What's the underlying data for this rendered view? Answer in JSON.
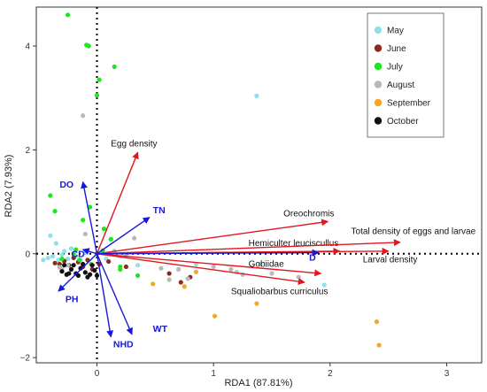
{
  "chart_data": {
    "type": "scatter",
    "title": "",
    "xlabel": "RDA1 (87.81%)",
    "ylabel": "RDA2 (7.93%)",
    "xlim": [
      -0.52,
      3.3
    ],
    "ylim": [
      -2.1,
      4.75
    ],
    "xticks": [
      0,
      1,
      2,
      3
    ],
    "yticks": [
      -2,
      0,
      2,
      4
    ],
    "grid": false,
    "legend_position": "top-right",
    "series": [
      {
        "name": "May",
        "color": "#8ee0ea",
        "points": [
          [
            -0.46,
            -0.12
          ],
          [
            -0.42,
            -0.08
          ],
          [
            -0.4,
            0.35
          ],
          [
            -0.38,
            -0.05
          ],
          [
            -0.35,
            0.2
          ],
          [
            -0.33,
            -0.12
          ],
          [
            -0.3,
            -0.02
          ],
          [
            -0.28,
            0.05
          ],
          [
            -0.25,
            -0.1
          ],
          [
            -0.22,
            0.1
          ],
          [
            -0.18,
            -0.05
          ],
          [
            -0.14,
            -0.12
          ],
          [
            -0.1,
            0.02
          ],
          [
            0.08,
            -0.1
          ],
          [
            0.35,
            -0.22
          ],
          [
            0.85,
            -0.2
          ],
          [
            1.2,
            -0.35
          ],
          [
            1.4,
            -0.2
          ],
          [
            1.95,
            -0.6
          ],
          [
            1.37,
            3.04
          ]
        ]
      },
      {
        "name": "June",
        "color": "#8b2a1e",
        "points": [
          [
            -0.36,
            -0.18
          ],
          [
            -0.32,
            -0.2
          ],
          [
            -0.28,
            -0.14
          ],
          [
            -0.24,
            -0.22
          ],
          [
            -0.2,
            -0.08
          ],
          [
            -0.16,
            -0.16
          ],
          [
            -0.12,
            -0.25
          ],
          [
            -0.08,
            -0.12
          ],
          [
            -0.04,
            -0.3
          ],
          [
            0.02,
            -0.2
          ],
          [
            0.1,
            -0.15
          ],
          [
            0.25,
            -0.25
          ],
          [
            0.62,
            -0.38
          ],
          [
            0.72,
            -0.55
          ],
          [
            0.8,
            -0.45
          ]
        ]
      },
      {
        "name": "July",
        "color": "#1ee61e",
        "points": [
          [
            -0.25,
            4.6
          ],
          [
            -0.09,
            4.02
          ],
          [
            -0.07,
            4.0
          ],
          [
            0.15,
            3.6
          ],
          [
            0.02,
            3.35
          ],
          [
            0.0,
            3.05
          ],
          [
            -0.4,
            1.12
          ],
          [
            -0.36,
            0.82
          ],
          [
            -0.12,
            0.65
          ],
          [
            -0.06,
            0.9
          ],
          [
            0.06,
            0.48
          ],
          [
            -0.3,
            -0.1
          ],
          [
            -0.18,
            0.08
          ],
          [
            0.0,
            0.0
          ],
          [
            0.12,
            0.28
          ],
          [
            -0.2,
            0.0
          ],
          [
            -0.15,
            -0.12
          ],
          [
            0.05,
            0.06
          ],
          [
            0.2,
            -0.25
          ],
          [
            0.35,
            -0.42
          ],
          [
            0.2,
            -0.3
          ],
          [
            -0.05,
            -0.2
          ]
        ]
      },
      {
        "name": "August",
        "color": "#b8b8b8",
        "points": [
          [
            -0.12,
            2.66
          ],
          [
            -0.1,
            0.38
          ],
          [
            0.32,
            0.3
          ],
          [
            0.15,
            0.05
          ],
          [
            0.25,
            -0.05
          ],
          [
            0.55,
            -0.28
          ],
          [
            0.62,
            -0.5
          ],
          [
            0.7,
            -0.3
          ],
          [
            0.78,
            -0.48
          ],
          [
            1.0,
            -0.25
          ],
          [
            1.15,
            -0.3
          ],
          [
            1.25,
            -0.4
          ],
          [
            1.5,
            -0.38
          ],
          [
            1.73,
            -0.45
          ],
          [
            -0.3,
            -0.3
          ],
          [
            -0.25,
            -0.22
          ],
          [
            -0.32,
            -0.26
          ]
        ]
      },
      {
        "name": "September",
        "color": "#f5a623",
        "points": [
          [
            0.48,
            -0.58
          ],
          [
            0.75,
            -0.63
          ],
          [
            0.85,
            -0.35
          ],
          [
            1.01,
            -1.2
          ],
          [
            1.37,
            -0.96
          ],
          [
            2.4,
            -1.31
          ],
          [
            2.42,
            -1.76
          ]
        ]
      },
      {
        "name": "October",
        "color": "#111111",
        "points": [
          [
            -0.3,
            -0.34
          ],
          [
            -0.26,
            -0.4
          ],
          [
            -0.22,
            -0.3
          ],
          [
            -0.18,
            -0.38
          ],
          [
            -0.14,
            -0.28
          ],
          [
            -0.1,
            -0.36
          ],
          [
            -0.06,
            -0.4
          ],
          [
            -0.02,
            -0.32
          ],
          [
            -0.28,
            -0.22
          ],
          [
            -0.2,
            -0.22
          ],
          [
            -0.12,
            -0.2
          ],
          [
            -0.04,
            -0.22
          ],
          [
            -0.16,
            -0.42
          ],
          [
            -0.08,
            -0.45
          ],
          [
            0.0,
            -0.42
          ],
          [
            -0.24,
            -0.38
          ]
        ]
      }
    ],
    "arrows": [
      {
        "label": "Egg density",
        "color": "#e3161f",
        "x": 0.35,
        "y": 1.95,
        "label_x": 0.12,
        "label_y": 2.07,
        "label_anchor": "start"
      },
      {
        "label": "Oreochromis",
        "color": "#e3161f",
        "x": 1.98,
        "y": 0.62,
        "label_x": 1.6,
        "label_y": 0.72,
        "label_anchor": "start"
      },
      {
        "label": "Hemiculter leuciscullus",
        "color": "#e3161f",
        "x": 2.08,
        "y": 0.05,
        "label_x": 1.3,
        "label_y": 0.15,
        "label_anchor": "start"
      },
      {
        "label": "Total density of eggs and larvae",
        "color": "#e3161f",
        "x": 2.6,
        "y": 0.22,
        "label_x": 2.18,
        "label_y": 0.38,
        "label_anchor": "start"
      },
      {
        "label": "Larval density",
        "color": "#e3161f",
        "x": 2.5,
        "y": 0.05,
        "label_x": 2.28,
        "label_y": -0.17,
        "label_anchor": "start"
      },
      {
        "label": "Gobiidae",
        "color": "#e3161f",
        "x": 1.92,
        "y": -0.38,
        "label_x": 1.3,
        "label_y": -0.25,
        "label_anchor": "start"
      },
      {
        "label": "Squaliobarbus curriculus",
        "color": "#e3161f",
        "x": 1.78,
        "y": -0.55,
        "label_x": 1.15,
        "label_y": -0.78,
        "label_anchor": "start"
      },
      {
        "label": "D",
        "color": "#1818d8",
        "x": 1.9,
        "y": 0.02,
        "label_x": 1.82,
        "label_y": -0.13,
        "label_anchor": "start"
      },
      {
        "label": "TN",
        "color": "#1818d8",
        "x": 0.45,
        "y": 0.7,
        "label_x": 0.48,
        "label_y": 0.78,
        "label_anchor": "start"
      },
      {
        "label": "DO",
        "color": "#1818d8",
        "x": -0.12,
        "y": 1.38,
        "label_x": -0.32,
        "label_y": 1.27,
        "label_anchor": "start"
      },
      {
        "label": "CD",
        "color": "#1818d8",
        "x": -0.12,
        "y": 0.08,
        "label_x": -0.22,
        "label_y": -0.06,
        "label_anchor": "start"
      },
      {
        "label": "PH",
        "color": "#1818d8",
        "x": -0.33,
        "y": -0.72,
        "label_x": -0.27,
        "label_y": -0.93,
        "label_anchor": "start"
      },
      {
        "label": "WT",
        "color": "#1818d8",
        "x": 0.3,
        "y": -1.55,
        "label_x": 0.48,
        "label_y": -1.5,
        "label_anchor": "start"
      },
      {
        "label": "NHD",
        "color": "#1818d8",
        "x": 0.12,
        "y": -1.6,
        "label_x": 0.14,
        "label_y": -1.8,
        "label_anchor": "start"
      }
    ]
  }
}
